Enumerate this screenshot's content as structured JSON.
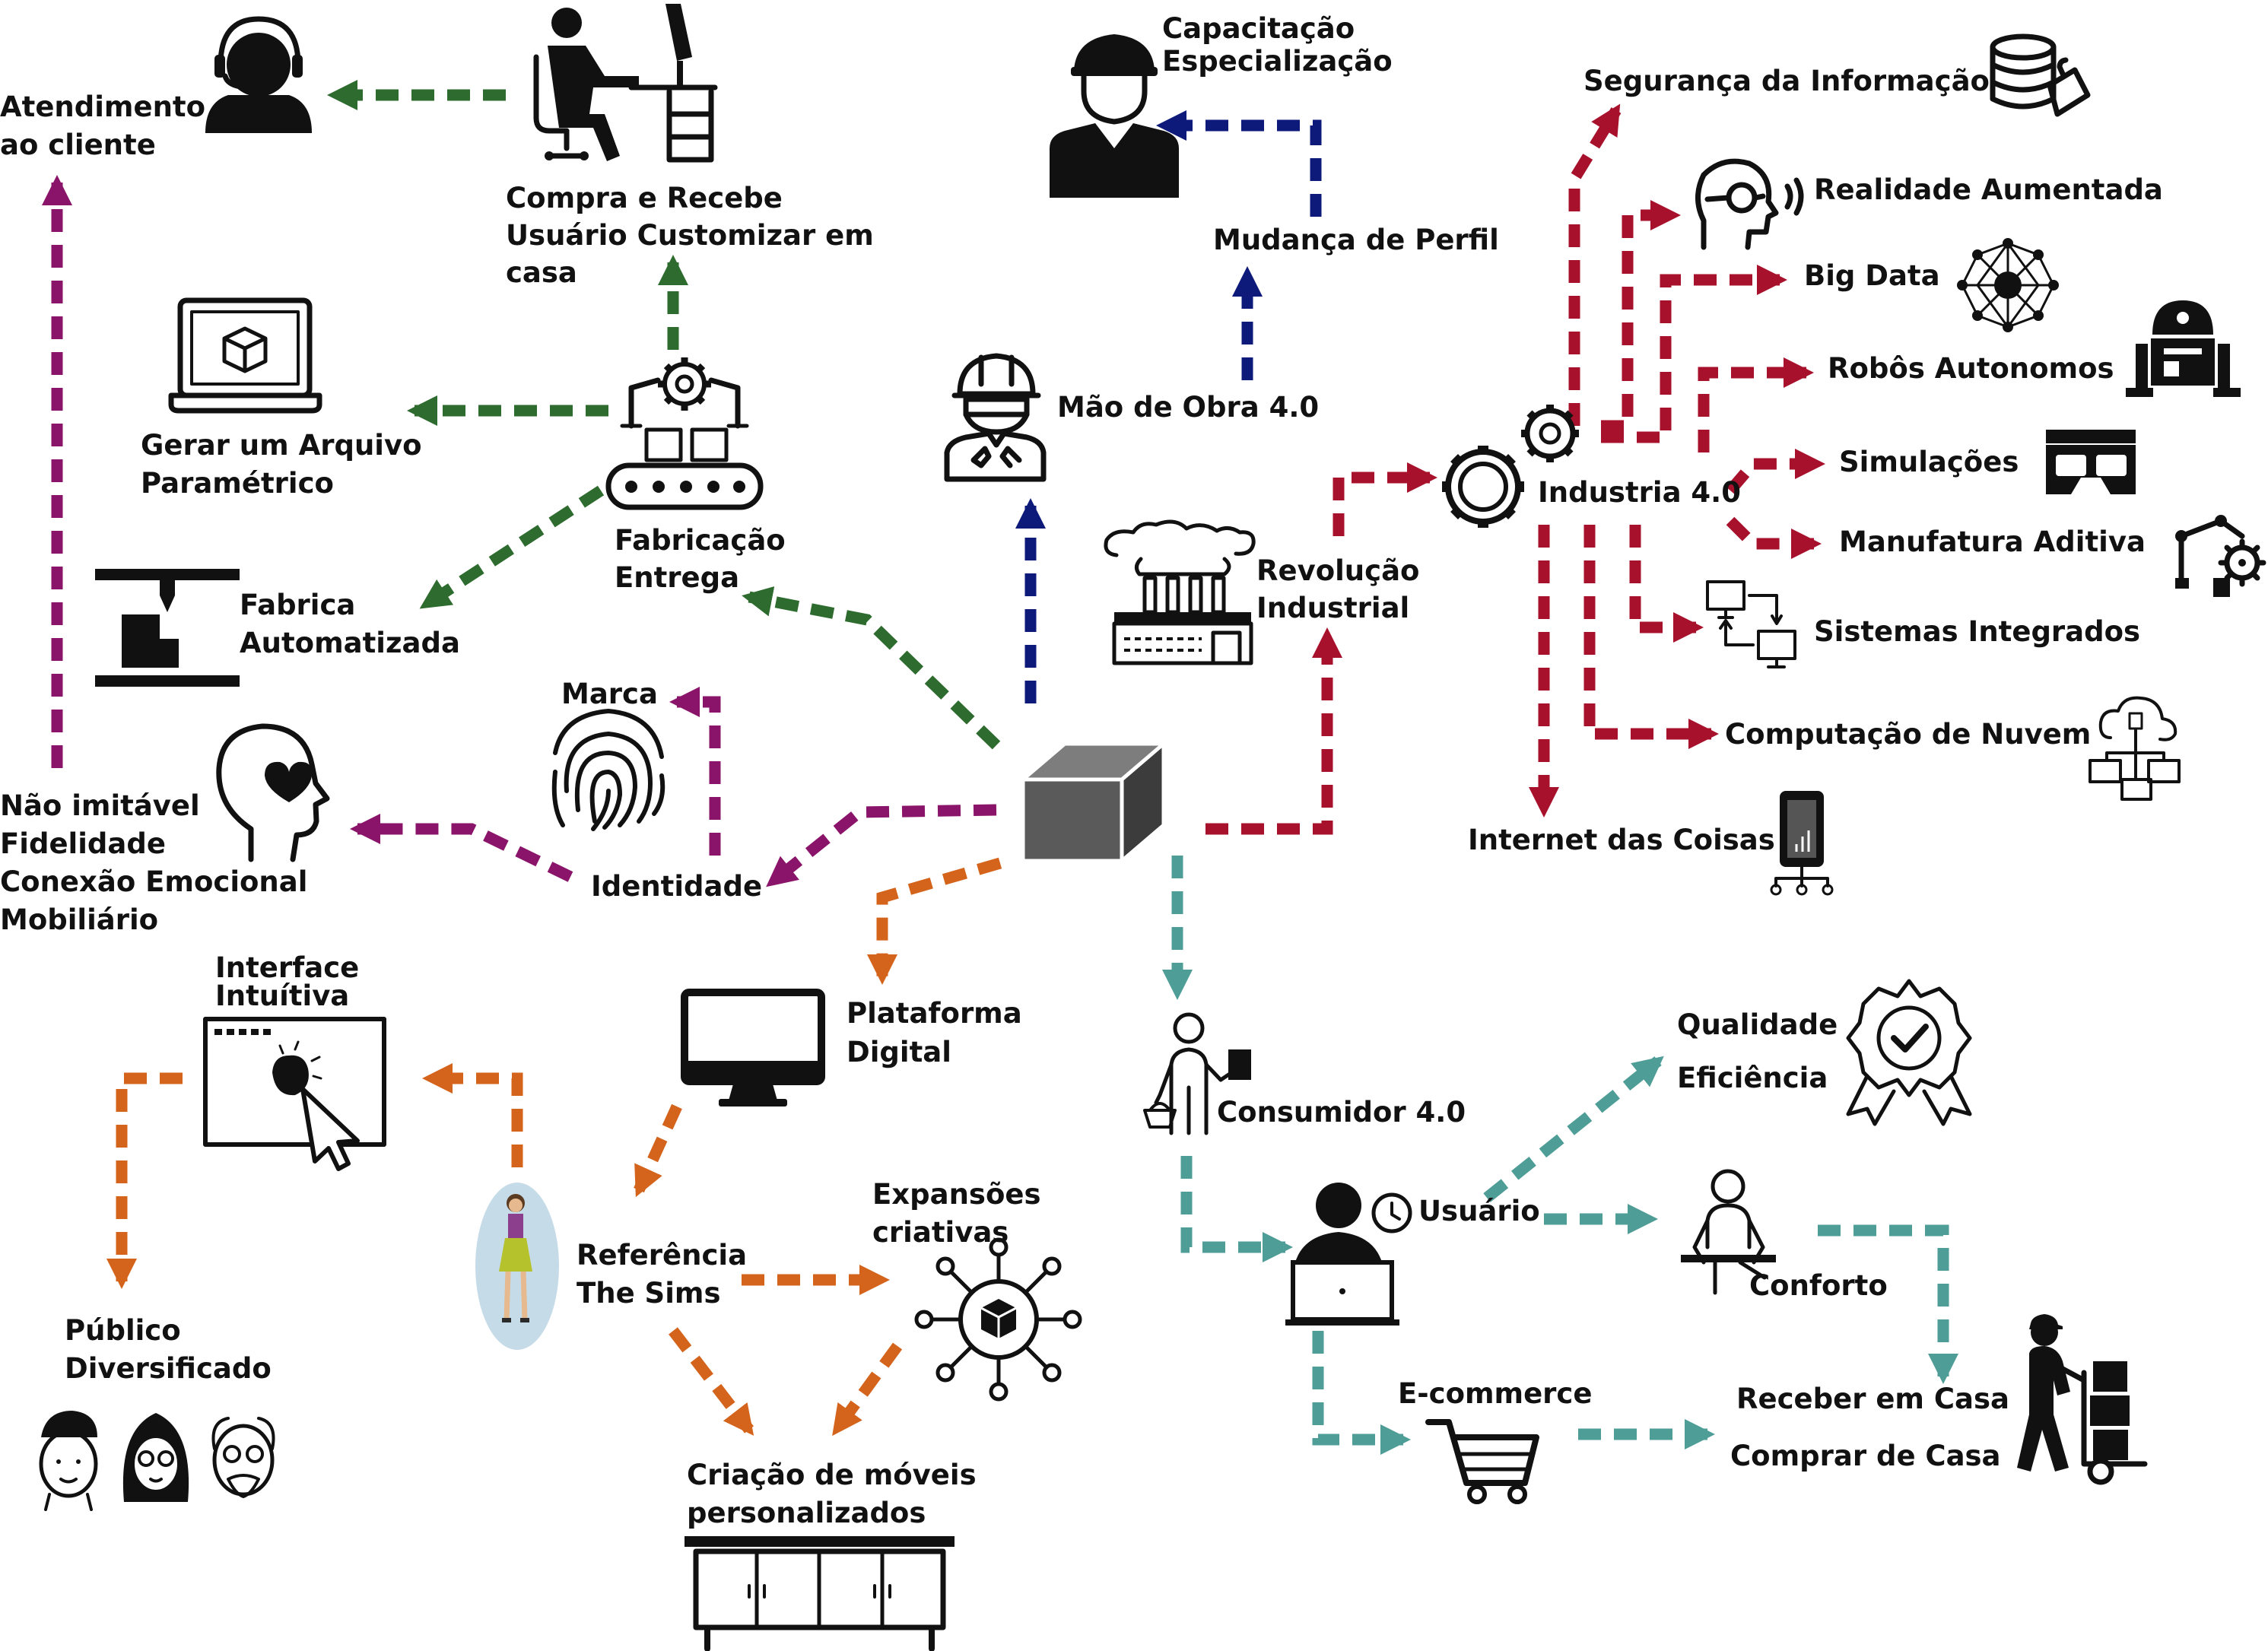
{
  "colors": {
    "green": "#2e6b2e",
    "navy": "#0d1a7a",
    "red": "#a8112c",
    "purple": "#8a1469",
    "orange": "#d4631b",
    "teal": "#4f9d97",
    "center_box": "#5a5a5a"
  },
  "labels": {
    "atendimento": [
      "Atendimento",
      "ao cliente"
    ],
    "compra": [
      "Compra e Recebe",
      "Usuário Customizar em",
      "casa"
    ],
    "capacitacao": [
      "Capacitação",
      "Especialização"
    ],
    "seguranca": "Segurança da Informação",
    "realidade": "Realidade Aumentada",
    "bigdata": "Big Data",
    "robos": "Robôs Autonomos",
    "simulacoes": "Simulações",
    "manufatura": "Manufatura Aditiva",
    "sistemas": "Sistemas Integrados",
    "nuvem": "Computação de Nuvem",
    "iot": "Internet das Coisas",
    "industria": "Industria 4.0",
    "mudanca": "Mudança de Perfil",
    "maodeobra": "Mão de Obra 4.0",
    "revolucao": [
      "Revolução",
      "Industrial"
    ],
    "gerar": [
      "Gerar um Arquivo",
      "Paramétrico"
    ],
    "fabrica": [
      "Fabrica",
      "Automatizada"
    ],
    "fabricacao": [
      "Fabricação",
      "Entrega"
    ],
    "marca": "Marca",
    "identidade": "Identidade",
    "naoimitavel": [
      "Não imitável",
      "Fidelidade",
      "Conexão Emocional",
      "Mobiliário"
    ],
    "interface": [
      "Interface",
      "Intuítiva"
    ],
    "plataforma": [
      "Plataforma",
      "Digital"
    ],
    "publico": [
      "Público",
      "Diversificado"
    ],
    "referencia": [
      "Referência",
      "The Sims"
    ],
    "expansoes": [
      "Expansões",
      "criativas"
    ],
    "criacao": [
      "Criação de móveis",
      "personalizados"
    ],
    "consumidor": "Consumidor 4.0",
    "qualidade": "Qualidade",
    "eficiencia": "Eficiência",
    "usuario": "Usuário",
    "conforto": "Conforto",
    "ecommerce": "E-commerce",
    "receber": "Receber em Casa",
    "comprar": "Comprar de Casa"
  }
}
